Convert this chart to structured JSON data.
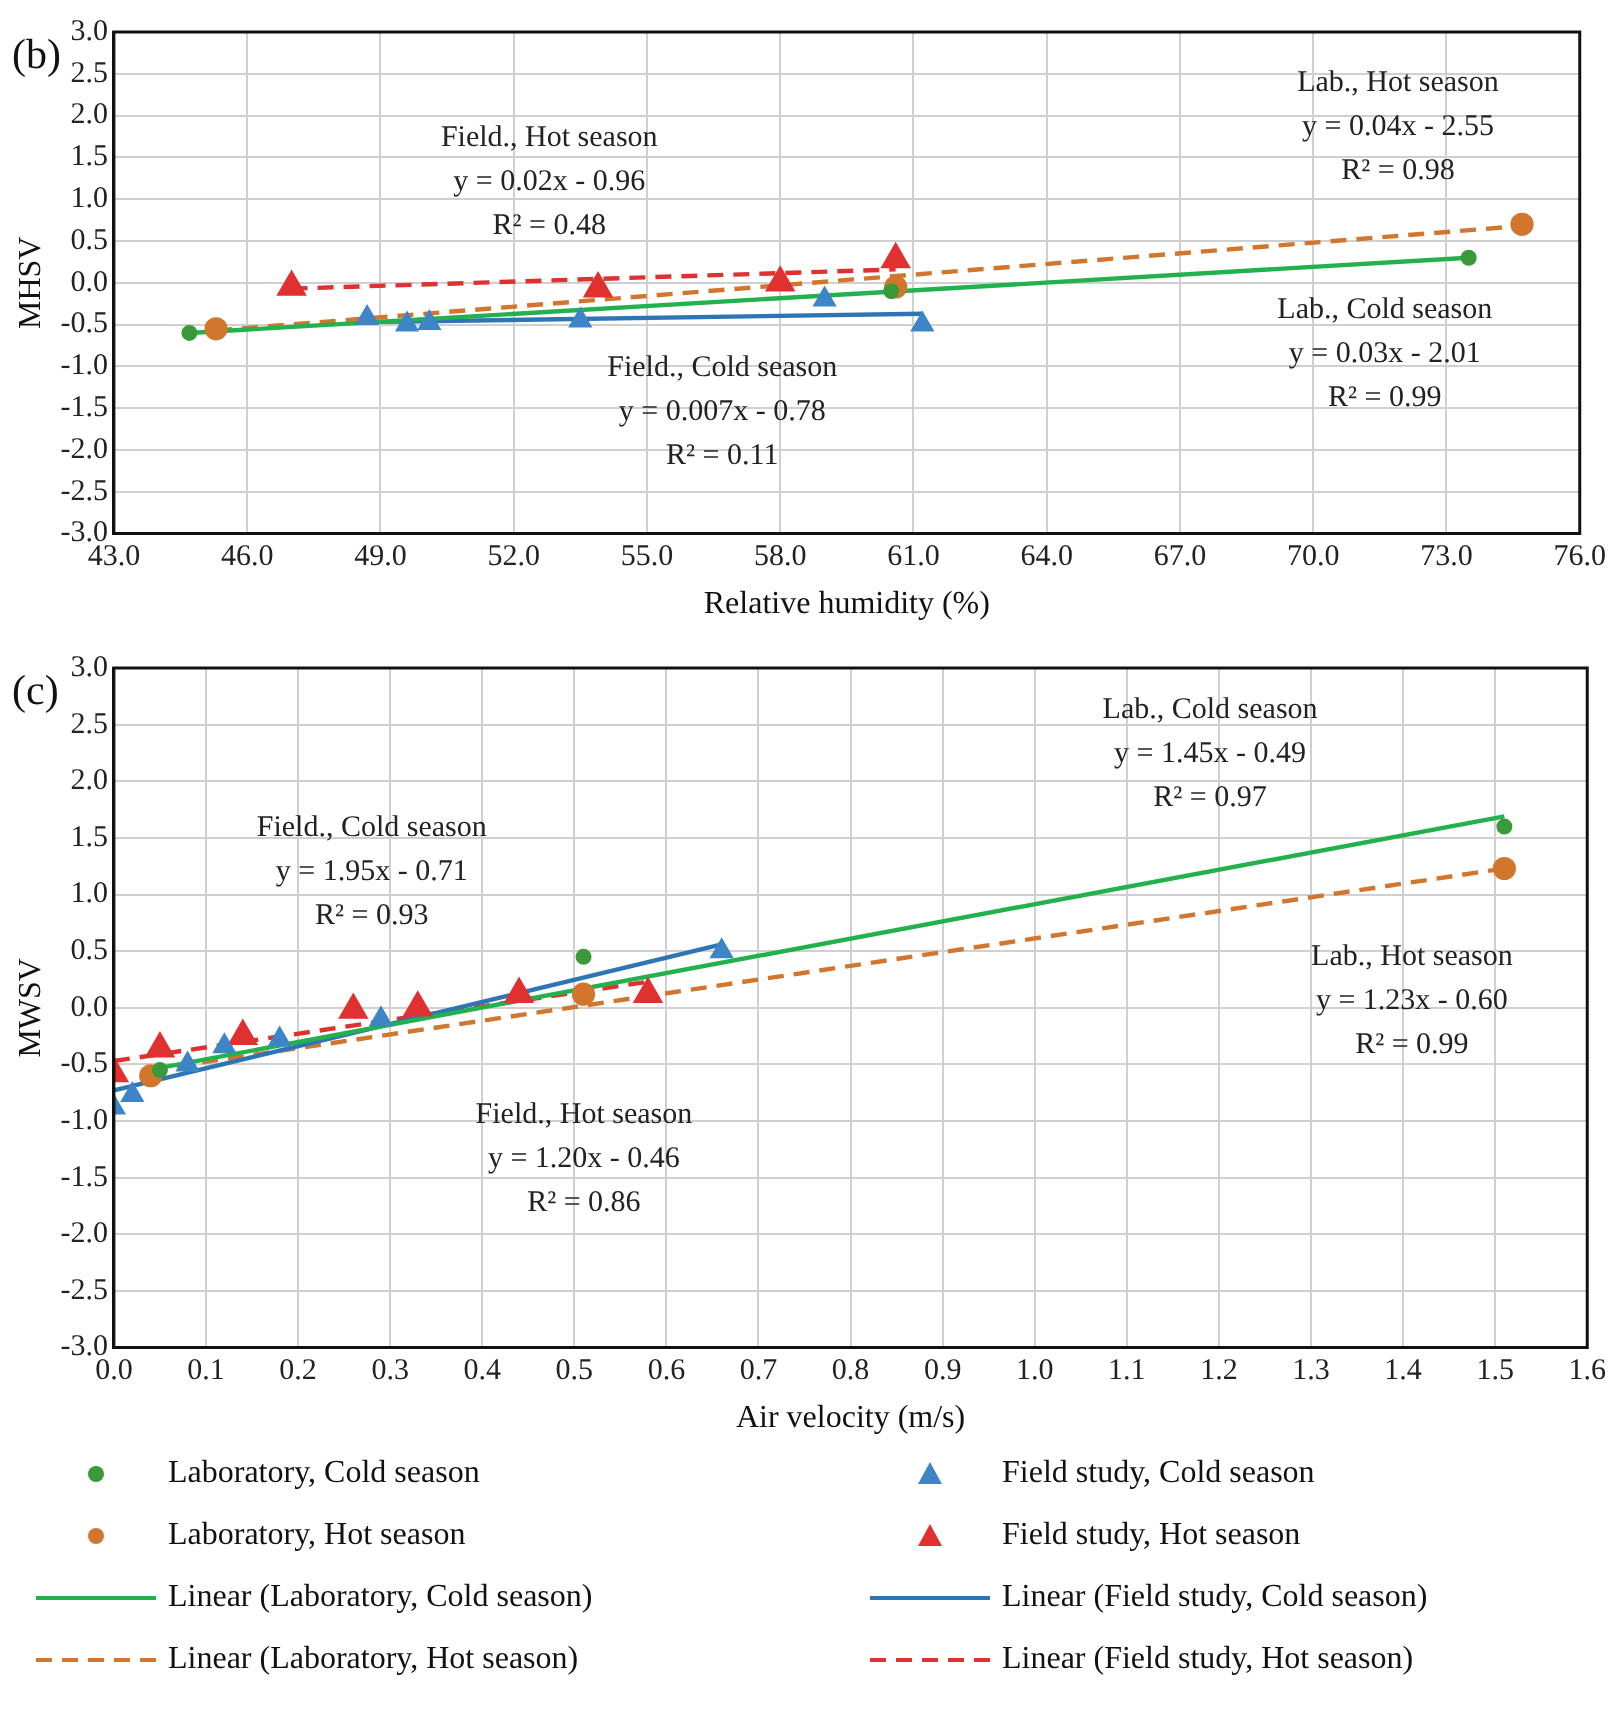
{
  "chart_data": [
    {
      "type": "scatter",
      "title": "(b)",
      "xlabel": "Relative humidity (%)",
      "ylabel": "MHSV",
      "xlim": [
        43,
        76
      ],
      "xticks": [
        {
          "value": 43,
          "label": "43.0"
        },
        {
          "value": 46,
          "label": "46.0"
        },
        {
          "value": 49,
          "label": "49.0"
        },
        {
          "value": 52,
          "label": "52.0"
        },
        {
          "value": 55,
          "label": "55.0"
        },
        {
          "value": 58,
          "label": "58.0"
        },
        {
          "value": 61,
          "label": "61.0"
        },
        {
          "value": 64,
          "label": "64.0"
        },
        {
          "value": 67,
          "label": "67.0"
        },
        {
          "value": 70,
          "label": "70.0"
        },
        {
          "value": 73,
          "label": "73.0"
        },
        {
          "value": 76,
          "label": "76.0"
        }
      ],
      "ylim": [
        -3,
        3
      ],
      "yticks": [
        {
          "value": -3,
          "label": "-3.0"
        },
        {
          "value": -2.5,
          "label": "-2.5"
        },
        {
          "value": -2,
          "label": "-2.0"
        },
        {
          "value": -1.5,
          "label": "-1.5"
        },
        {
          "value": -1,
          "label": "-1.0"
        },
        {
          "value": -0.5,
          "label": "-0.5"
        },
        {
          "value": 0,
          "label": "0.0"
        },
        {
          "value": 0.5,
          "label": "0.5"
        },
        {
          "value": 1,
          "label": "1.0"
        },
        {
          "value": 1.5,
          "label": "1.5"
        },
        {
          "value": 2,
          "label": "2.0"
        },
        {
          "value": 2.5,
          "label": "2.5"
        },
        {
          "value": 3,
          "label": "3.0"
        }
      ],
      "grid": true,
      "legend": false,
      "series": [
        {
          "type": "scatter",
          "marker": "circle",
          "color": "#3a9a3a",
          "x": [
            44.7,
            60.5,
            73.5
          ],
          "values": [
            -0.6,
            -0.1,
            0.3
          ]
        },
        {
          "type": "scatter",
          "marker": "triangle",
          "color": "#3d85c6",
          "x": [
            48.7,
            49.6,
            50.1,
            53.5,
            59.0,
            61.2
          ],
          "values": [
            -0.42,
            -0.5,
            -0.48,
            -0.45,
            -0.2,
            -0.5
          ]
        },
        {
          "type": "scatter",
          "marker": "circle",
          "color": "#d2762e",
          "x": [
            45.3,
            60.6,
            74.7
          ],
          "values": [
            -0.55,
            -0.05,
            0.7
          ]
        },
        {
          "type": "scatter",
          "marker": "triangle",
          "color": "#e03030",
          "x": [
            47.0,
            53.9,
            58.0,
            60.6
          ],
          "values": [
            -0.05,
            -0.07,
            0.0,
            0.28
          ]
        },
        {
          "type": "line",
          "line_style": "solid",
          "color": "#22b14c",
          "x": [
            44.7,
            73.5
          ],
          "values": [
            -0.6,
            0.3
          ]
        },
        {
          "type": "line",
          "line_style": "solid",
          "color": "#2e75b6",
          "x": [
            48.7,
            61.2
          ],
          "values": [
            -0.47,
            -0.37
          ]
        },
        {
          "type": "line",
          "line_style": "dashed",
          "color": "#d2762e",
          "x": [
            45.3,
            74.7
          ],
          "values": [
            -0.57,
            0.68
          ]
        },
        {
          "type": "line",
          "line_style": "dashed",
          "color": "#e03030",
          "x": [
            47.0,
            60.6
          ],
          "values": [
            -0.07,
            0.16
          ]
        }
      ],
      "annotations": [
        "Field., Hot season\ny = 0.02x - 0.96\nR² = 0.48",
        "Lab., Hot season\ny = 0.04x - 2.55\nR² = 0.98",
        "Lab., Cold season\ny = 0.03x - 2.01\nR² = 0.99",
        "Field., Cold season\ny = 0.007x - 0.78\nR² = 0.11"
      ]
    },
    {
      "type": "scatter",
      "title": "(c)",
      "xlabel": "Air velocity (m/s)",
      "ylabel": "MWSV",
      "xlim": [
        0,
        1.6
      ],
      "xticks": [
        {
          "value": 0,
          "label": "0.0"
        },
        0.1,
        0.2,
        0.3,
        0.4,
        0.5,
        0.6,
        0.7,
        0.8,
        0.9,
        {
          "value": 1,
          "label": "1.0"
        },
        1.1,
        1.2,
        1.3,
        1.4,
        1.5,
        1.6
      ],
      "ylim": [
        -3,
        3
      ],
      "yticks": [
        {
          "value": -3,
          "label": "-3.0"
        },
        {
          "value": -2.5,
          "label": "-2.5"
        },
        {
          "value": -2,
          "label": "-2.0"
        },
        {
          "value": -1.5,
          "label": "-1.5"
        },
        {
          "value": -1,
          "label": "-1.0"
        },
        {
          "value": -0.5,
          "label": "-0.5"
        },
        {
          "value": 0,
          "label": "0.0"
        },
        {
          "value": 0.5,
          "label": "0.5"
        },
        {
          "value": 1,
          "label": "1.0"
        },
        {
          "value": 1.5,
          "label": "1.5"
        },
        {
          "value": 2,
          "label": "2.0"
        },
        {
          "value": 2.5,
          "label": "2.5"
        },
        {
          "value": 3,
          "label": "3.0"
        }
      ],
      "grid": true,
      "legend": "bottom",
      "series": [
        {
          "type": "scatter",
          "name": "Laboratory, Cold season",
          "marker": "circle",
          "color": "#3a9a3a",
          "x": [
            0.05,
            0.51,
            1.51
          ],
          "values": [
            -0.55,
            0.45,
            1.6
          ]
        },
        {
          "type": "scatter",
          "name": "Field study, Cold season",
          "marker": "triangle",
          "color": "#3d85c6",
          "x": [
            0.0,
            0.02,
            0.08,
            0.12,
            0.18,
            0.29,
            0.66
          ],
          "values": [
            -0.88,
            -0.77,
            -0.5,
            -0.34,
            -0.28,
            -0.1,
            0.5
          ]
        },
        {
          "type": "scatter",
          "name": "Laboratory, Hot season",
          "marker": "circle",
          "color": "#d2762e",
          "x": [
            0.04,
            0.51,
            1.51
          ],
          "values": [
            -0.6,
            0.12,
            1.23
          ]
        },
        {
          "type": "scatter",
          "name": "Field study, Hot season",
          "marker": "triangle",
          "color": "#e03030",
          "x": [
            0.0,
            0.05,
            0.14,
            0.26,
            0.33,
            0.44,
            0.58
          ],
          "values": [
            -0.58,
            -0.36,
            -0.25,
            -0.02,
            0.0,
            0.12,
            0.12
          ]
        },
        {
          "type": "line",
          "name": "Linear (Laboratory, Cold season)",
          "line_style": "solid",
          "color": "#22b14c",
          "x": [
            0.05,
            1.51
          ],
          "values": [
            -0.53,
            1.69
          ]
        },
        {
          "type": "line",
          "name": "Linear (Field study, Cold season)",
          "line_style": "solid",
          "color": "#2e75b6",
          "x": [
            0.0,
            0.66
          ],
          "values": [
            -0.73,
            0.56
          ]
        },
        {
          "type": "line",
          "name": "Linear (Laboratory, Hot season)",
          "line_style": "dashed",
          "color": "#d2762e",
          "x": [
            0.04,
            1.51
          ],
          "values": [
            -0.55,
            1.23
          ]
        },
        {
          "type": "line",
          "name": "Linear (Field study, Hot season)",
          "line_style": "dashed",
          "color": "#e03030",
          "x": [
            0.0,
            0.58
          ],
          "values": [
            -0.47,
            0.23
          ]
        }
      ],
      "annotations": [
        "Field., Cold season\ny = 1.95x - 0.71\nR² = 0.93",
        "Lab., Cold season\ny = 1.45x - 0.49\nR² = 0.97",
        "Lab., Hot season\ny = 1.23x - 0.60\nR² = 0.99",
        "Field., Hot season\ny = 1.20x - 0.46\nR² = 0.86"
      ]
    }
  ]
}
